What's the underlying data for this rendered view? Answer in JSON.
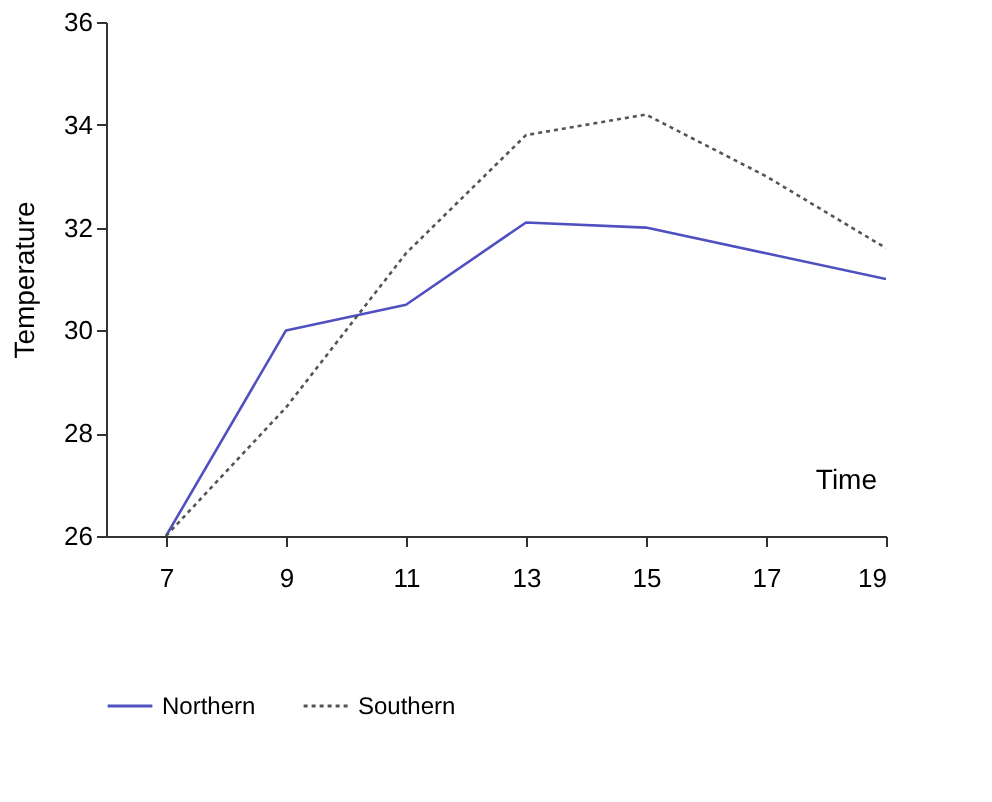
{
  "chart_data": {
    "type": "line",
    "xlabel": "Time",
    "ylabel": "Temperature",
    "x": [
      7,
      9,
      11,
      13,
      15,
      17,
      19
    ],
    "series": [
      {
        "name": "Northern",
        "color": "#5050c0",
        "line_style": "solid",
        "values": [
          26,
          30,
          30.5,
          32.1,
          32,
          31.5,
          31
        ]
      },
      {
        "name": "Southern",
        "color": "#555555",
        "line_style": "dotted",
        "values": [
          26,
          28.5,
          31.5,
          33.8,
          34.2,
          33,
          31.6
        ]
      }
    ],
    "xlim": [
      6,
      19
    ],
    "xticks": [
      7,
      9,
      11,
      13,
      15,
      17,
      19
    ],
    "ylim": [
      26,
      36
    ],
    "yticks": [
      26,
      28,
      30,
      32,
      34,
      36
    ],
    "grid": false,
    "legend": "bottom",
    "marker": "none"
  }
}
